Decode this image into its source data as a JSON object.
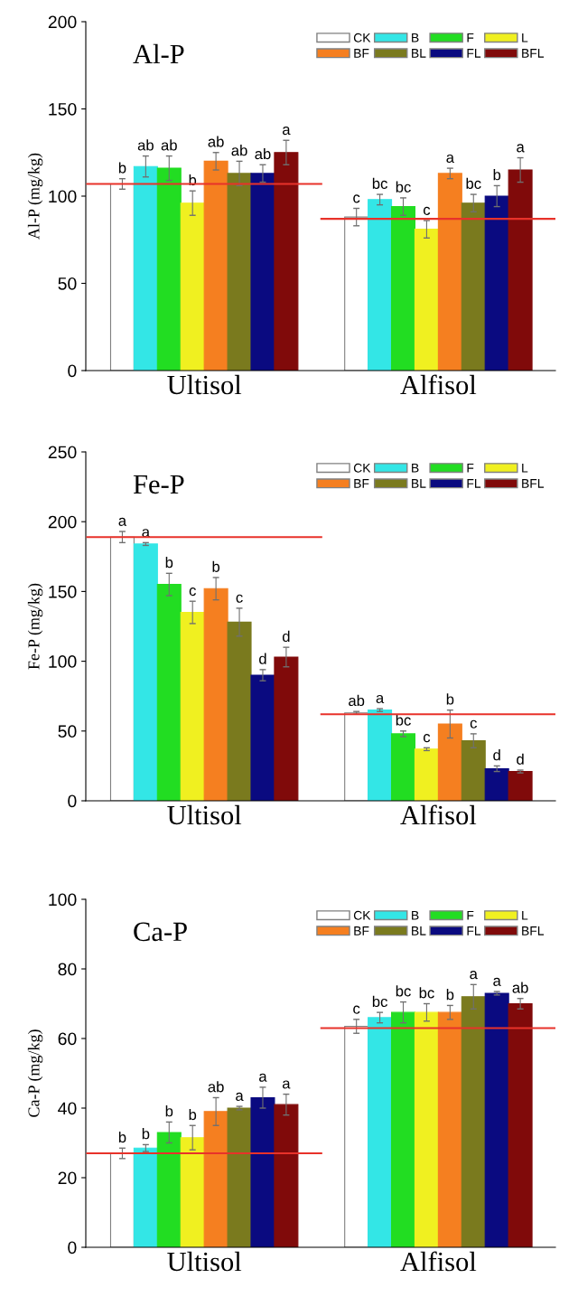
{
  "chart_data": [
    {
      "type": "bar",
      "title": "Al-P",
      "ylabel": "Al-P (mg/kg)",
      "categories": [
        "Ultisol",
        "Alfisol"
      ],
      "ylim": [
        0,
        200
      ],
      "yticks": [
        0,
        50,
        100,
        150,
        200
      ],
      "grid": false,
      "legend": "top right",
      "series": [
        {
          "name": "CK",
          "color": "#ffffff",
          "values": [
            107,
            88
          ],
          "errors": [
            3,
            5
          ],
          "value_labels": [
            "b",
            "c"
          ]
        },
        {
          "name": "B",
          "color": "#33e6e6",
          "values": [
            117,
            98
          ],
          "errors": [
            6,
            3
          ],
          "value_labels": [
            "ab",
            "bc"
          ]
        },
        {
          "name": "F",
          "color": "#22dd22",
          "values": [
            116,
            94
          ],
          "errors": [
            7,
            5
          ],
          "value_labels": [
            "ab",
            "bc"
          ]
        },
        {
          "name": "L",
          "color": "#f0f020",
          "values": [
            96,
            81
          ],
          "errors": [
            7,
            5
          ],
          "value_labels": [
            "b",
            "c"
          ]
        },
        {
          "name": "BF",
          "color": "#f57f20",
          "values": [
            120,
            113
          ],
          "errors": [
            5,
            3
          ],
          "value_labels": [
            "ab",
            "a"
          ]
        },
        {
          "name": "BL",
          "color": "#7a7a1e",
          "values": [
            113,
            96
          ],
          "errors": [
            7,
            5
          ],
          "value_labels": [
            "ab",
            "bc"
          ]
        },
        {
          "name": "FL",
          "color": "#0a0a80",
          "values": [
            113,
            100
          ],
          "errors": [
            5,
            6
          ],
          "value_labels": [
            "ab",
            "b"
          ]
        },
        {
          "name": "BFL",
          "color": "#800a0a",
          "values": [
            125,
            115
          ],
          "errors": [
            7,
            7
          ],
          "value_labels": [
            "a",
            "a"
          ]
        }
      ],
      "ref_lines": [
        {
          "axis": "y",
          "value": 107,
          "color": "#e8322a"
        },
        {
          "axis": "y",
          "value": 87,
          "color": "#e8322a"
        }
      ]
    },
    {
      "type": "bar",
      "title": "Fe-P",
      "ylabel": "Fe-P (mg/kg)",
      "categories": [
        "Ultisol",
        "Alfisol"
      ],
      "ylim": [
        0,
        250
      ],
      "yticks": [
        0,
        50,
        100,
        150,
        200,
        250
      ],
      "grid": false,
      "legend": "top right",
      "series": [
        {
          "name": "CK",
          "color": "#ffffff",
          "values": [
            189,
            63
          ],
          "errors": [
            4,
            1
          ],
          "value_labels": [
            "a",
            "ab"
          ]
        },
        {
          "name": "B",
          "color": "#33e6e6",
          "values": [
            184,
            65
          ],
          "errors": [
            1,
            1
          ],
          "value_labels": [
            "a",
            "a"
          ]
        },
        {
          "name": "F",
          "color": "#22dd22",
          "values": [
            155,
            48
          ],
          "errors": [
            8,
            2
          ],
          "value_labels": [
            "b",
            "bc"
          ]
        },
        {
          "name": "L",
          "color": "#f0f020",
          "values": [
            135,
            37
          ],
          "errors": [
            8,
            1
          ],
          "value_labels": [
            "c",
            "c"
          ]
        },
        {
          "name": "BF",
          "color": "#f57f20",
          "values": [
            152,
            55
          ],
          "errors": [
            8,
            10
          ],
          "value_labels": [
            "b",
            "b"
          ]
        },
        {
          "name": "BL",
          "color": "#7a7a1e",
          "values": [
            128,
            43
          ],
          "errors": [
            10,
            5
          ],
          "value_labels": [
            "c",
            "c"
          ]
        },
        {
          "name": "FL",
          "color": "#0a0a80",
          "values": [
            90,
            23
          ],
          "errors": [
            4,
            2
          ],
          "value_labels": [
            "d",
            "d"
          ]
        },
        {
          "name": "BFL",
          "color": "#800a0a",
          "values": [
            103,
            21
          ],
          "errors": [
            7,
            1
          ],
          "value_labels": [
            "d",
            "d"
          ]
        }
      ],
      "ref_lines": [
        {
          "axis": "y",
          "value": 189,
          "color": "#e8322a"
        },
        {
          "axis": "y",
          "value": 62,
          "color": "#e8322a"
        }
      ]
    },
    {
      "type": "bar",
      "title": "Ca-P",
      "ylabel": "Ca-P (mg/kg)",
      "categories": [
        "Ultisol",
        "Alfisol"
      ],
      "ylim": [
        0,
        100
      ],
      "yticks": [
        0,
        20,
        40,
        60,
        80,
        100
      ],
      "grid": false,
      "legend": "top right",
      "series": [
        {
          "name": "CK",
          "color": "#ffffff",
          "values": [
            27,
            63.5
          ],
          "errors": [
            1.5,
            2
          ],
          "value_labels": [
            "b",
            "c"
          ]
        },
        {
          "name": "B",
          "color": "#33e6e6",
          "values": [
            28.5,
            66
          ],
          "errors": [
            1,
            1.5
          ],
          "value_labels": [
            "b",
            "bc"
          ]
        },
        {
          "name": "F",
          "color": "#22dd22",
          "values": [
            33,
            67.5
          ],
          "errors": [
            3,
            3
          ],
          "value_labels": [
            "b",
            "bc"
          ]
        },
        {
          "name": "L",
          "color": "#f0f020",
          "values": [
            31.5,
            67.5
          ],
          "errors": [
            3.5,
            2.5
          ],
          "value_labels": [
            "b",
            "bc"
          ]
        },
        {
          "name": "BF",
          "color": "#f57f20",
          "values": [
            39,
            67.5
          ],
          "errors": [
            4,
            2
          ],
          "value_labels": [
            "ab",
            "b"
          ]
        },
        {
          "name": "BL",
          "color": "#7a7a1e",
          "values": [
            40,
            72
          ],
          "errors": [
            0.5,
            3.5
          ],
          "value_labels": [
            "a",
            "a"
          ]
        },
        {
          "name": "FL",
          "color": "#0a0a80",
          "values": [
            43,
            73
          ],
          "errors": [
            3,
            0.5
          ],
          "value_labels": [
            "a",
            "a"
          ]
        },
        {
          "name": "BFL",
          "color": "#800a0a",
          "values": [
            41,
            70
          ],
          "errors": [
            3,
            1.5
          ],
          "value_labels": [
            "a",
            "ab"
          ]
        }
      ],
      "ref_lines": [
        {
          "axis": "y",
          "value": 27,
          "color": "#e8322a"
        },
        {
          "axis": "y",
          "value": 63,
          "color": "#e8322a"
        }
      ]
    }
  ]
}
